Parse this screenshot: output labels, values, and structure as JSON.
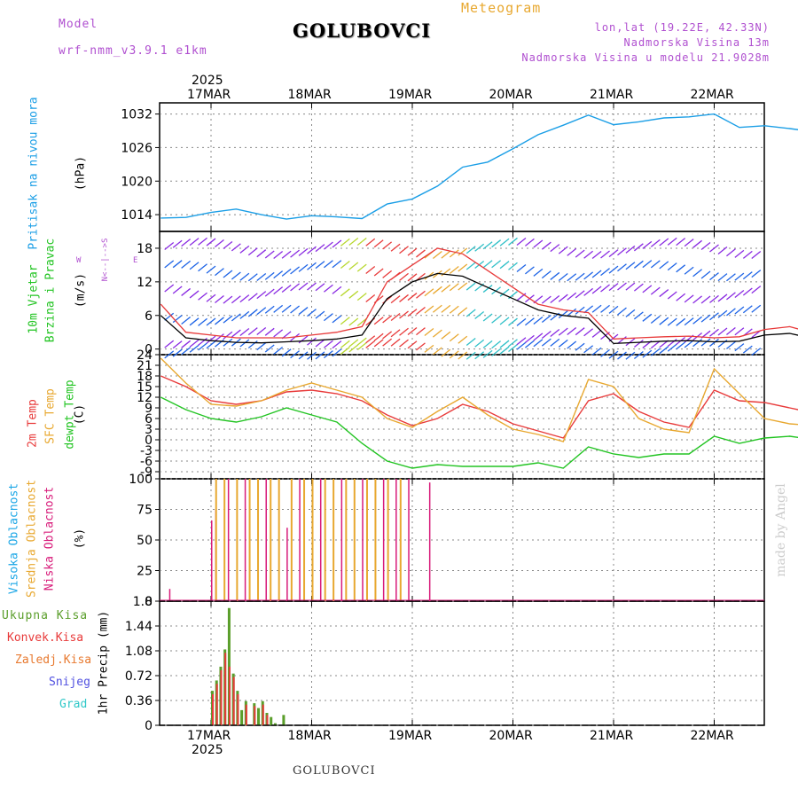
{
  "header": {
    "model_label": "Model",
    "model_name": "wrf-nmm_v3.9.1  e1km",
    "station": "GOLUBOVCI",
    "meteogram_label": "Meteogram",
    "lonlat": "lon,lat (19.22E, 42.33N)",
    "elevation": "Nadmorska Visina 13m",
    "model_elevation": "Nadmorska Visina u modelu 21.9028m",
    "footer_station": "GOLUBOVCI",
    "credit": "made by Angel"
  },
  "colors": {
    "pressure": "#1a9ee6",
    "temp2m": "#e83a3a",
    "sfc": "#e8a830",
    "dewpt": "#22c422",
    "wind_speed": "#000000",
    "wind_gust": "#e83a3a",
    "high_cloud": "#1aa6e6",
    "mid_cloud": "#e8a830",
    "low_cloud": "#d81b7a",
    "total_precip": "#5a9e2a",
    "conv_precip": "#e83a3a",
    "purple": "#b050d0",
    "orange": "#e8a830"
  },
  "time_axis": {
    "top_year": "2025",
    "bottom_year": "2025",
    "dates": [
      "17MAR",
      "18MAR",
      "19MAR",
      "20MAR",
      "21MAR",
      "22MAR"
    ]
  },
  "panel_labels": {
    "pressure": {
      "title": "Pritisak na nivou mora",
      "unit": "(hPa)"
    },
    "wind": {
      "title1": "10m Vjetar",
      "title2": "Brzina i Pravac",
      "unit": "(m/s)",
      "compass_ns": "N<--|-->S",
      "compass_w": "W",
      "compass_e": "E"
    },
    "temp": {
      "t1": "2m Temp",
      "t2": "SFC Temp",
      "t3": "dewpt Temp",
      "unit": "(C)"
    },
    "cloud": {
      "c1": "Visoka Oblacnost",
      "c2": "Srednja Oblacnost",
      "c3": "Niska Oblacnost",
      "unit": "(%)"
    },
    "precip": {
      "p1": "Ukupna Kisa",
      "p2": "Konvek.Kisa",
      "p3": "Zaledj.Kisa",
      "p4": "Snijeg",
      "p5": "Grad",
      "unit": "1hr Precip (mm)"
    }
  },
  "chart_data": [
    {
      "type": "line",
      "title": "",
      "ylabel": "Pritisak na nivou mora (hPa)",
      "ylim": [
        1011,
        1034
      ],
      "yticks": [
        1014,
        1020,
        1026,
        1032
      ],
      "x_hours": [
        0,
        6,
        12,
        18,
        24,
        30,
        36,
        42,
        48,
        54,
        60,
        66,
        72,
        78,
        84,
        90,
        96,
        102,
        108,
        114,
        120,
        126,
        132,
        138,
        144,
        150,
        156,
        162,
        168,
        174,
        180
      ],
      "series": [
        {
          "name": "Pritisak",
          "values": [
            1013.4,
            1013.5,
            1014.4,
            1015.0,
            1014.0,
            1013.2,
            1013.8,
            1013.6,
            1013.3,
            1015.9,
            1016.8,
            1019.1,
            1022.5,
            1023.4,
            1025.8,
            1028.3,
            1030.0,
            1031.8,
            1030.1,
            1030.6,
            1031.3,
            1031.5,
            1032.0,
            1029.6,
            1029.9,
            1029.4,
            1028.8,
            1028.8,
            1027.2,
            1026.5,
            1025.5
          ]
        }
      ]
    },
    {
      "type": "line",
      "title": "",
      "ylabel": "10m Vjetar Brzina i Pravac (m/s)",
      "ylim": [
        -1,
        21
      ],
      "yticks": [
        0,
        6,
        12,
        18
      ],
      "x_hours": [
        0,
        6,
        12,
        18,
        24,
        30,
        36,
        42,
        48,
        54,
        60,
        66,
        72,
        78,
        84,
        90,
        96,
        102,
        108,
        114,
        120,
        126,
        132,
        138,
        144,
        150,
        156,
        162,
        168,
        174,
        180
      ],
      "series": [
        {
          "name": "Brzina",
          "values": [
            6,
            2,
            1.5,
            1.2,
            1.1,
            1.3,
            1.5,
            1.8,
            2.5,
            9,
            12,
            13.5,
            13,
            11,
            9,
            7,
            6,
            5.5,
            1,
            1.2,
            1.4,
            1.5,
            1.3,
            1.4,
            2.5,
            2.8,
            1.8,
            1.5,
            1.6,
            1.2,
            1.3
          ]
        },
        {
          "name": "Udar",
          "values": [
            8,
            3,
            2.5,
            2,
            2,
            2,
            2.5,
            3,
            4,
            12,
            15,
            18,
            17,
            14,
            11,
            8,
            7,
            6.5,
            1.8,
            2,
            2.2,
            2.3,
            2,
            2.2,
            3.5,
            4,
            2.8,
            2.3,
            2.5,
            2,
            2.1
          ]
        }
      ]
    },
    {
      "type": "line",
      "title": "",
      "ylabel": "2m Temp / SFC Temp / dewpt Temp (C)",
      "ylim": [
        -11,
        24
      ],
      "yticks": [
        -9,
        -6,
        -3,
        0,
        3,
        6,
        9,
        12,
        15,
        18,
        21,
        24
      ],
      "x_hours": [
        0,
        6,
        12,
        18,
        24,
        30,
        36,
        42,
        48,
        54,
        60,
        66,
        72,
        78,
        84,
        90,
        96,
        102,
        108,
        114,
        120,
        126,
        132,
        138,
        144,
        150,
        156,
        162,
        168,
        174,
        180
      ],
      "series": [
        {
          "name": "2m Temp",
          "values": [
            18,
            15,
            11,
            10,
            11,
            13.5,
            14,
            13,
            11,
            7,
            4,
            6,
            10,
            8,
            4.5,
            2.5,
            0.5,
            11,
            13,
            8,
            5,
            3.5,
            14,
            11,
            10.5,
            9,
            7.5,
            15,
            10,
            8.5,
            16
          ]
        },
        {
          "name": "SFC Temp",
          "values": [
            23,
            16,
            10,
            9.5,
            11,
            14,
            16,
            14,
            12,
            6,
            3.5,
            8,
            12,
            7,
            3,
            1.5,
            -0.5,
            17,
            15,
            6,
            3,
            2,
            20,
            13,
            6,
            4.5,
            4,
            21,
            8,
            5,
            22
          ]
        },
        {
          "name": "dewpt Temp",
          "values": [
            12,
            8.5,
            6,
            5,
            6.5,
            9,
            7,
            5,
            -1,
            -6,
            -8,
            -7,
            -7.5,
            -7.5,
            -7.5,
            -6.5,
            -8,
            -2,
            -4,
            -5,
            -4,
            -4,
            1,
            -1,
            0.5,
            1,
            0,
            6,
            5.5,
            2,
            7
          ]
        }
      ]
    },
    {
      "type": "bar",
      "title": "",
      "ylabel": "Visoka / Srednja / Niska Oblacnost (%)",
      "ylim": [
        0,
        100
      ],
      "yticks": [
        0,
        25,
        50,
        75,
        100
      ],
      "series": [
        {
          "name": "Niska Oblacnost",
          "x_hours": [
            2,
            12,
            13,
            16,
            20,
            25,
            30,
            33,
            38,
            43,
            48,
            53,
            56,
            59,
            64,
            163,
            164,
            169,
            173,
            175
          ],
          "values": [
            10,
            66,
            75,
            100,
            100,
            100,
            60,
            100,
            100,
            100,
            100,
            100,
            100,
            100,
            97,
            10,
            10,
            36,
            10,
            10
          ]
        },
        {
          "name": "Srednja Oblacnost",
          "x_hours": [
            13,
            15,
            18,
            21,
            23,
            26,
            28,
            31,
            34,
            36,
            39,
            41,
            44,
            46,
            49,
            51,
            54,
            57
          ],
          "values": [
            100,
            100,
            100,
            100,
            100,
            100,
            100,
            100,
            100,
            100,
            100,
            100,
            100,
            100,
            100,
            100,
            100,
            100
          ]
        },
        {
          "name": "Visoka Oblacnost",
          "x_hours": [
            179
          ],
          "values": [
            100
          ]
        }
      ]
    },
    {
      "type": "bar",
      "title": "",
      "ylabel": "1hr Precip (mm)",
      "ylim": [
        0,
        1.8
      ],
      "yticks": [
        0,
        0.36,
        0.72,
        1.08,
        1.44,
        1.8
      ],
      "series": [
        {
          "name": "Ukupna Kisa",
          "x_hours": [
            12,
            13,
            14,
            15,
            16,
            17,
            18,
            19,
            20,
            22,
            23,
            24,
            25,
            26,
            27,
            29
          ],
          "values": [
            0.5,
            0.65,
            0.85,
            1.1,
            1.7,
            0.75,
            0.5,
            0.22,
            0.35,
            0.32,
            0.25,
            0.35,
            0.18,
            0.12,
            0.03,
            0.15
          ]
        },
        {
          "name": "Konvek.Kisa",
          "x_hours": [
            12,
            13,
            14,
            15,
            16,
            17,
            18,
            20,
            22,
            24,
            25
          ],
          "values": [
            0.45,
            0.6,
            0.8,
            1.05,
            0.85,
            0.7,
            0.45,
            0.3,
            0.28,
            0.3,
            0.15
          ]
        }
      ]
    }
  ]
}
